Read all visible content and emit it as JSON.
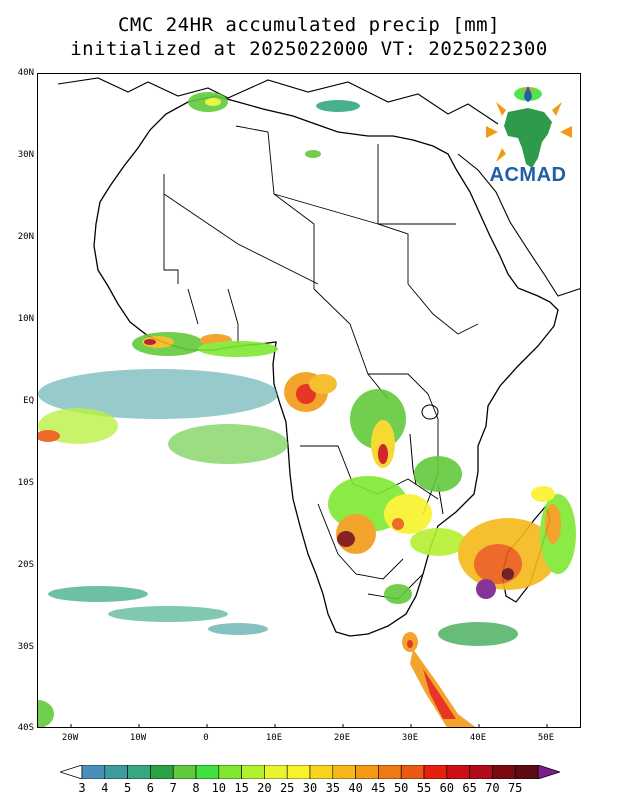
{
  "title_line1": "CMC 24HR accumulated precip [mm]",
  "title_line2": "initialized at 2025022000 VT: 2025022300",
  "logo": {
    "text": "ACMAD",
    "icon": "africa-rain-logo-icon"
  },
  "lat_labels": [
    "40N",
    "30N",
    "20N",
    "10N",
    "EQ",
    "10S",
    "20S",
    "30S",
    "40S"
  ],
  "lon_labels": [
    "20W",
    "10W",
    "0",
    "10E",
    "20E",
    "30E",
    "40E",
    "50E"
  ],
  "colorbar": {
    "labels": [
      "3",
      "4",
      "5",
      "6",
      "7",
      "8",
      "10",
      "15",
      "20",
      "25",
      "30",
      "35",
      "40",
      "45",
      "50",
      "55",
      "60",
      "65",
      "70",
      "75"
    ],
    "colors": [
      "#4a8fb8",
      "#3e9c9c",
      "#35a882",
      "#2aa344",
      "#62c93a",
      "#3fe03f",
      "#7ee830",
      "#b4f030",
      "#e6f52e",
      "#f9f22a",
      "#f7d51e",
      "#f5b818",
      "#f29a16",
      "#ee7a14",
      "#ea5a12",
      "#e6200e",
      "#cc0f12",
      "#b00c18",
      "#7a0a0e",
      "#5e0a14",
      "#7a1e8c"
    ]
  }
}
